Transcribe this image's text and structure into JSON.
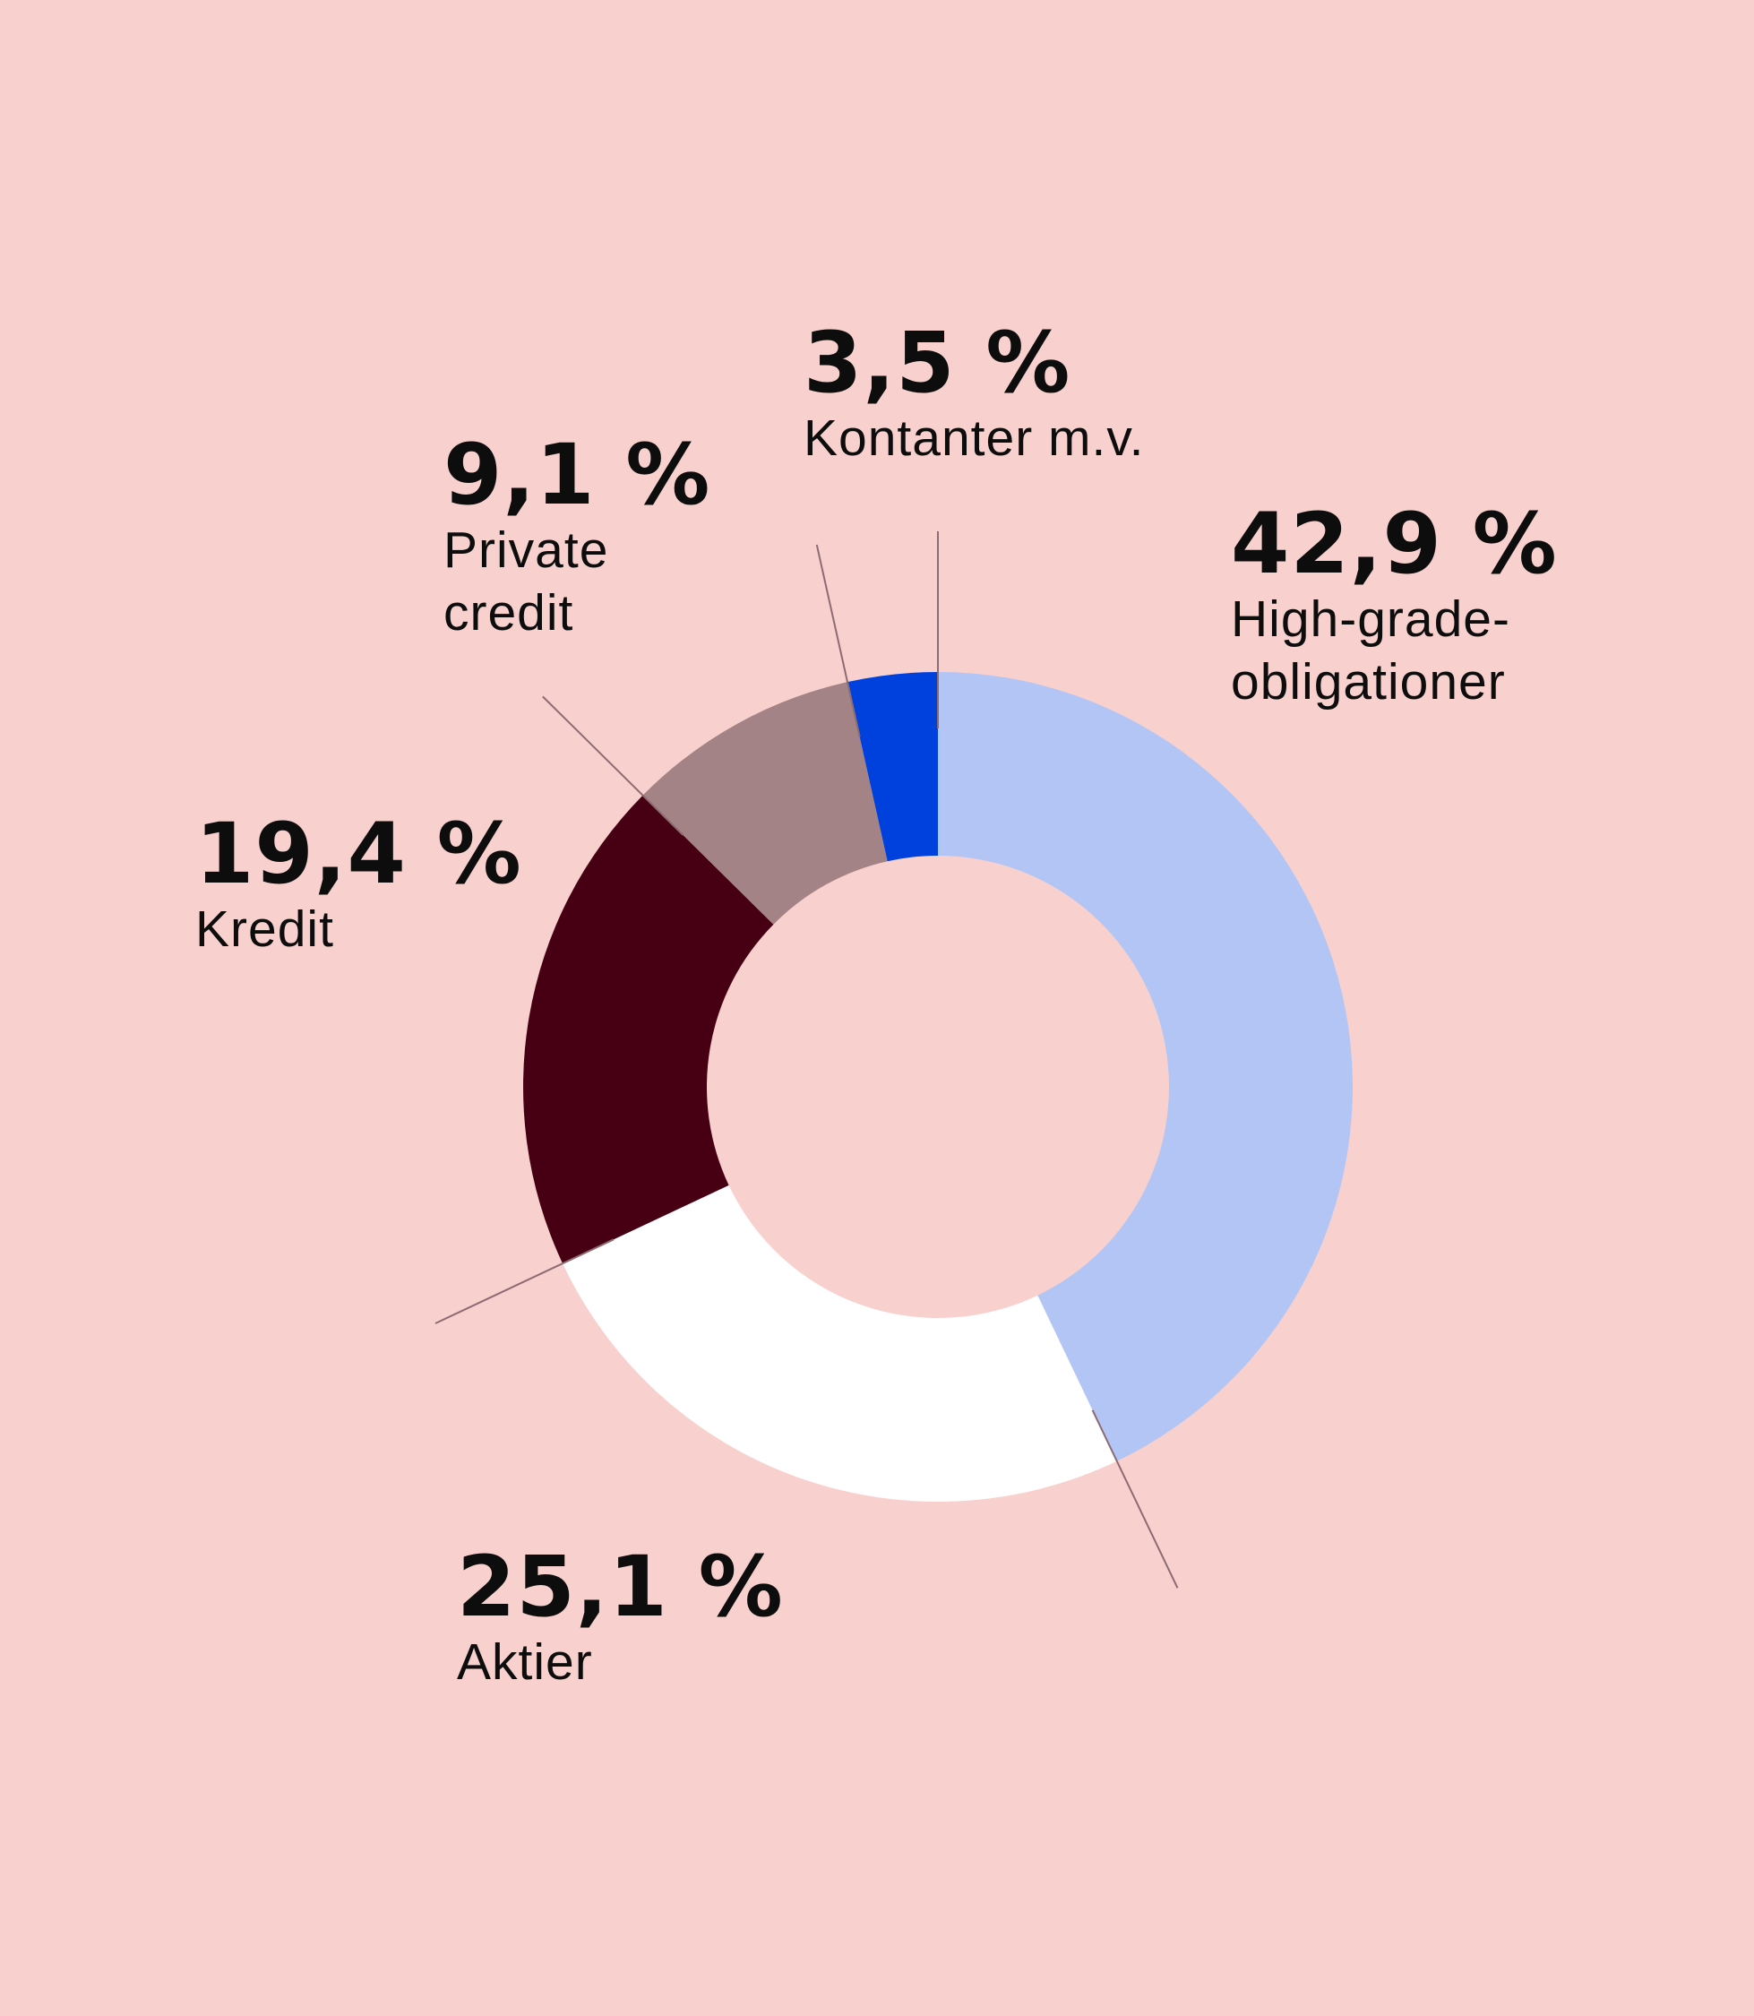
{
  "chart_data": {
    "type": "pie",
    "variant": "donut",
    "slices": [
      {
        "label": "High-grade-\nobligationer",
        "value": 42.9,
        "value_label": "42,9 %",
        "color": "#b2c5f5"
      },
      {
        "label": "Aktier",
        "value": 25.1,
        "value_label": "25,1 %",
        "color": "#ffffff"
      },
      {
        "label": "Kredit",
        "value": 19.4,
        "value_label": "19,4 %",
        "color": "#470013"
      },
      {
        "label": "Private\ncredit",
        "value": 9.1,
        "value_label": "9,1 %",
        "color": "#a48387"
      },
      {
        "label": "Kontanter m.v.",
        "value": 3.5,
        "value_label": "3,5 %",
        "color": "#0040dd"
      }
    ],
    "start": "top",
    "direction": "clockwise",
    "legend": "none",
    "leader_line_color": "#8c6b72"
  }
}
